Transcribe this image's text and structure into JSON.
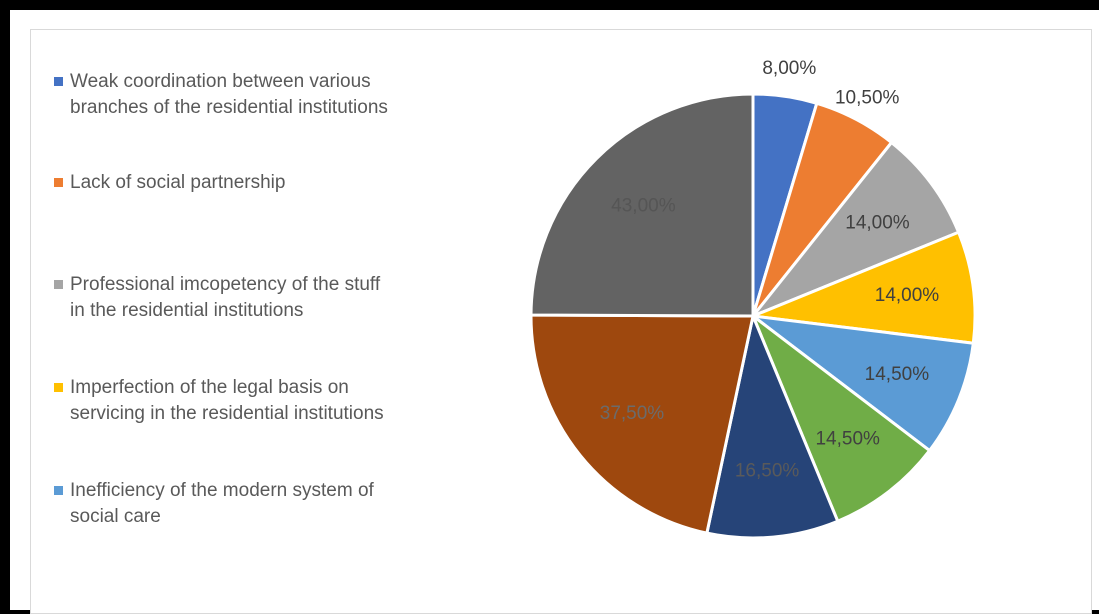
{
  "chart_data": {
    "type": "pie",
    "legend_position": "left",
    "slices": [
      {
        "label": "Weak coordination between various branches of the residential institutions",
        "value_label": "8,00%",
        "value": 8.0,
        "color": "#4472C4",
        "in_legend": true
      },
      {
        "label": "Lack of social partnership",
        "value_label": "10,50%",
        "value": 10.5,
        "color": "#ED7D31",
        "in_legend": true
      },
      {
        "label": "Professional imcopetency of the stuff in the residential institutions",
        "value_label": "14,00%",
        "value": 14.0,
        "color": "#A5A5A5",
        "in_legend": true
      },
      {
        "label": "Imperfection of the legal basis on servicing in the residential institutions",
        "value_label": "14,00%",
        "value": 14.0,
        "color": "#FFC000",
        "in_legend": true
      },
      {
        "label": "Inefficiency of the modern system of social care",
        "value_label": "14,50%",
        "value": 14.5,
        "color": "#5B9BD5",
        "in_legend": true
      },
      {
        "label": "",
        "value_label": "14,50%",
        "value": 14.5,
        "color": "#70AD47",
        "in_legend": false
      },
      {
        "label": "",
        "value_label": "16,50%",
        "value": 16.5,
        "color": "#264478",
        "in_legend": false
      },
      {
        "label": "",
        "value_label": "37,50%",
        "value": 37.5,
        "color": "#9E480E",
        "in_legend": false
      },
      {
        "label": "",
        "value_label": "43,00%",
        "value": 43.0,
        "color": "#636363",
        "in_legend": false
      }
    ]
  }
}
